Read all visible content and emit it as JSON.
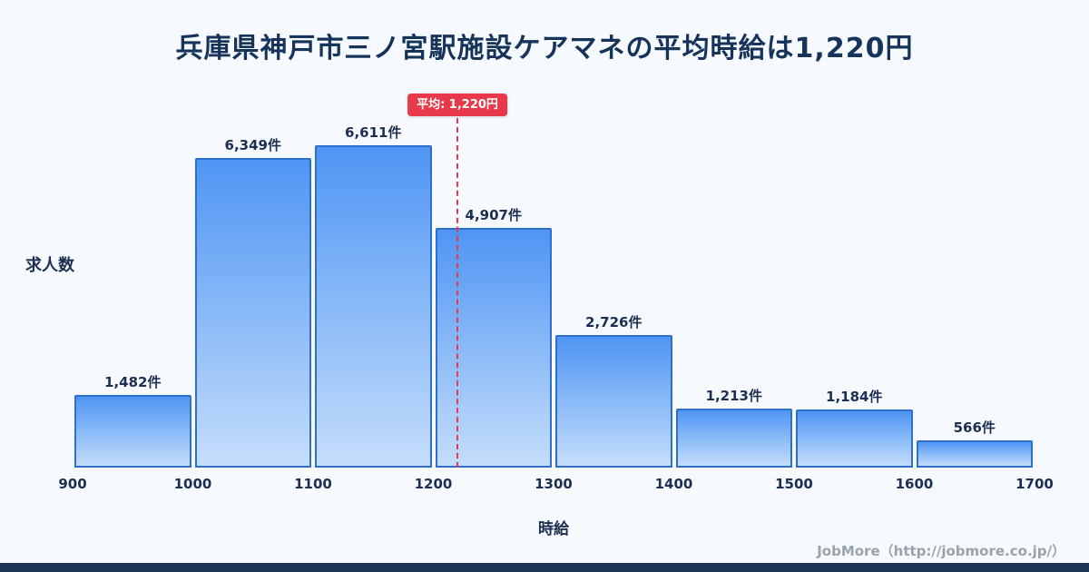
{
  "title": "兵庫県神戸市三ノ宮駅施設ケアマネの平均時給は1,220円",
  "chart_data": {
    "type": "bar",
    "title": "兵庫県神戸市三ノ宮駅施設ケアマネの平均時給は1,220円",
    "xlabel": "時給",
    "ylabel": "求人数",
    "x_range": [
      900,
      1700
    ],
    "ylim": [
      0,
      7000
    ],
    "grid": false,
    "legend": "none",
    "x_ticks": [
      "900",
      "1000",
      "1100",
      "1200",
      "1300",
      "1400",
      "1500",
      "1600",
      "1700"
    ],
    "categories": [
      "900-1000",
      "1000-1100",
      "1100-1200",
      "1200-1300",
      "1300-1400",
      "1400-1500",
      "1500-1600",
      "1600-1700"
    ],
    "values": [
      1482,
      6349,
      6611,
      4907,
      2726,
      1213,
      1184,
      566
    ],
    "value_labels": [
      "1,482件",
      "6,349件",
      "6,611件",
      "4,907件",
      "2,726件",
      "1,213件",
      "1,184件",
      "566件"
    ],
    "average": {
      "value": 1220,
      "label": "平均: 1,220円"
    },
    "colors": {
      "background": "#f6f9fd",
      "bar_fill_top": "#4f95f4",
      "bar_fill_bottom": "#c5ddfb",
      "bar_border": "#2e6fce",
      "title_text": "#16335a",
      "axis_text": "#1c2f52",
      "average_red": "#e8394a",
      "footer_text": "#9aa3ad",
      "bottom_bar": "#1d3456"
    }
  },
  "footer": {
    "credit": "JobMore（http://jobmore.co.jp/）"
  }
}
